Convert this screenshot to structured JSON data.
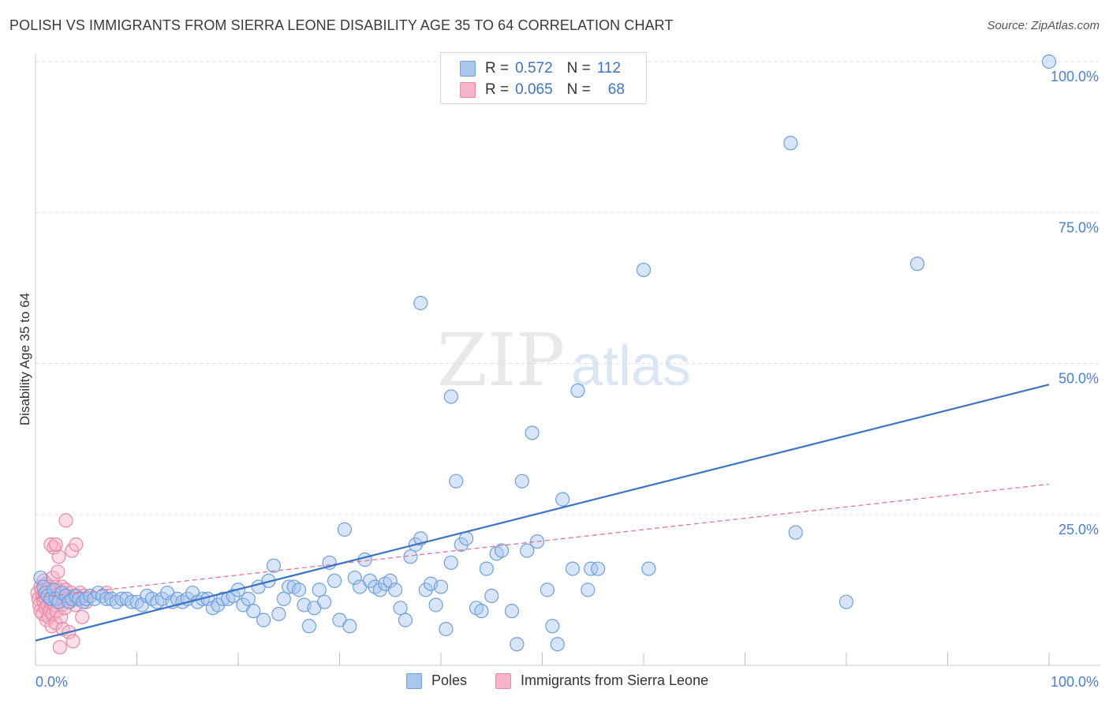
{
  "title": "POLISH VS IMMIGRANTS FROM SIERRA LEONE DISABILITY AGE 35 TO 64 CORRELATION CHART",
  "source": "Source: ZipAtlas.com",
  "watermark": {
    "zip": "ZIP",
    "atlas": "atlas"
  },
  "legend_top": {
    "rows": [
      {
        "r_label": "R =",
        "r_value": "0.572",
        "n_label": "N =",
        "n_value": "112"
      },
      {
        "r_label": "R =",
        "r_value": "0.065",
        "n_label": "N =",
        "n_value": "68"
      }
    ]
  },
  "colors": {
    "poles_fill": "#a9c6ef",
    "poles_stroke": "#6f9fdc",
    "poles_line": "#3d73c5",
    "sl_fill": "#f7b3c8",
    "sl_stroke": "#e889a8",
    "sl_line": "#e27497",
    "grid": "#dedede",
    "tick_text": "#4a7fcf"
  },
  "chart_data": {
    "type": "scatter",
    "title": "POLISH VS IMMIGRANTS FROM SIERRA LEONE DISABILITY AGE 35 TO 64 CORRELATION CHART",
    "xlabel": "",
    "ylabel": "Disability Age 35 to 64",
    "xlim": [
      0,
      100
    ],
    "ylim": [
      0,
      100
    ],
    "x_tick_labels": [
      "0.0%",
      "100.0%"
    ],
    "y_ticks": [
      25,
      50,
      75,
      100
    ],
    "y_tick_labels": [
      "25.0%",
      "50.0%",
      "75.0%",
      "100.0%"
    ],
    "grid": "horizontal dashed",
    "legend_position": "bottom",
    "series": [
      {
        "name": "Poles",
        "trend": {
          "x": [
            0,
            100
          ],
          "y": [
            4.1,
            46.5
          ]
        },
        "points": [
          [
            0.5,
            14.5
          ],
          [
            0.8,
            13.0
          ],
          [
            1.0,
            12.0
          ],
          [
            1.2,
            11.5
          ],
          [
            1.5,
            11.0
          ],
          [
            1.8,
            12.5
          ],
          [
            2.0,
            11.0
          ],
          [
            2.3,
            10.5
          ],
          [
            2.6,
            12.0
          ],
          [
            3.0,
            11.5
          ],
          [
            3.3,
            10.5
          ],
          [
            3.6,
            11.0
          ],
          [
            4.0,
            11.5
          ],
          [
            4.3,
            11.0
          ],
          [
            4.7,
            10.5
          ],
          [
            5.0,
            11.0
          ],
          [
            5.4,
            11.5
          ],
          [
            5.8,
            11.0
          ],
          [
            6.2,
            12.0
          ],
          [
            6.6,
            11.5
          ],
          [
            7.0,
            11.0
          ],
          [
            7.5,
            11.0
          ],
          [
            8.0,
            10.5
          ],
          [
            8.5,
            11.0
          ],
          [
            9.0,
            11.0
          ],
          [
            9.5,
            10.5
          ],
          [
            10.0,
            10.5
          ],
          [
            10.5,
            10.0
          ],
          [
            11.0,
            11.5
          ],
          [
            11.5,
            11.0
          ],
          [
            12.0,
            10.5
          ],
          [
            12.5,
            11.0
          ],
          [
            13.0,
            12.0
          ],
          [
            13.5,
            10.5
          ],
          [
            14.0,
            11.0
          ],
          [
            14.5,
            10.5
          ],
          [
            15.0,
            11.0
          ],
          [
            15.5,
            12.0
          ],
          [
            16.0,
            10.5
          ],
          [
            16.5,
            11.0
          ],
          [
            17.0,
            11.0
          ],
          [
            17.5,
            9.5
          ],
          [
            18.0,
            10.0
          ],
          [
            18.5,
            11.0
          ],
          [
            19.0,
            11.0
          ],
          [
            19.5,
            11.5
          ],
          [
            20.0,
            12.5
          ],
          [
            20.5,
            10.0
          ],
          [
            21.0,
            11.0
          ],
          [
            21.5,
            9.0
          ],
          [
            22.0,
            13.0
          ],
          [
            22.5,
            7.5
          ],
          [
            23.0,
            14.0
          ],
          [
            23.5,
            16.5
          ],
          [
            24.0,
            8.5
          ],
          [
            24.5,
            11.0
          ],
          [
            25.0,
            13.0
          ],
          [
            25.5,
            13.0
          ],
          [
            26.0,
            12.5
          ],
          [
            26.5,
            10.0
          ],
          [
            27.0,
            6.5
          ],
          [
            27.5,
            9.5
          ],
          [
            28.0,
            12.5
          ],
          [
            28.5,
            10.5
          ],
          [
            29.0,
            17.0
          ],
          [
            29.5,
            14.0
          ],
          [
            30.0,
            7.5
          ],
          [
            30.5,
            22.5
          ],
          [
            31.0,
            6.5
          ],
          [
            31.5,
            14.5
          ],
          [
            32.0,
            13.0
          ],
          [
            32.5,
            17.5
          ],
          [
            33.0,
            14.0
          ],
          [
            33.5,
            13.0
          ],
          [
            34.0,
            12.5
          ],
          [
            34.5,
            13.5
          ],
          [
            35.0,
            14.0
          ],
          [
            35.5,
            12.5
          ],
          [
            36.0,
            9.5
          ],
          [
            36.5,
            7.5
          ],
          [
            37.0,
            18.0
          ],
          [
            37.5,
            20.0
          ],
          [
            38.0,
            21.0
          ],
          [
            38.5,
            12.5
          ],
          [
            39.0,
            13.5
          ],
          [
            39.5,
            10.0
          ],
          [
            40.0,
            13.0
          ],
          [
            40.5,
            6.0
          ],
          [
            41.0,
            17.0
          ],
          [
            41.5,
            30.5
          ],
          [
            42.0,
            20.0
          ],
          [
            42.5,
            21.0
          ],
          [
            43.5,
            9.5
          ],
          [
            44.0,
            9.0
          ],
          [
            44.5,
            16.0
          ],
          [
            45.0,
            11.5
          ],
          [
            45.5,
            18.5
          ],
          [
            46.0,
            19.0
          ],
          [
            47.0,
            9.0
          ],
          [
            47.5,
            3.5
          ],
          [
            48.0,
            30.5
          ],
          [
            48.5,
            19.0
          ],
          [
            49.0,
            38.5
          ],
          [
            49.5,
            20.5
          ],
          [
            50.5,
            12.5
          ],
          [
            51.0,
            6.5
          ],
          [
            51.5,
            3.5
          ],
          [
            52.0,
            27.5
          ],
          [
            53.0,
            16.0
          ],
          [
            53.5,
            45.5
          ],
          [
            54.5,
            12.5
          ],
          [
            54.8,
            16.0
          ],
          [
            55.5,
            16.0
          ],
          [
            60.0,
            65.5
          ],
          [
            60.5,
            16.0
          ],
          [
            74.5,
            86.5
          ],
          [
            75.0,
            22.0
          ],
          [
            80.0,
            10.5
          ],
          [
            87.0,
            66.5
          ],
          [
            100.0,
            100.0
          ],
          [
            38.0,
            60.0
          ],
          [
            41.0,
            44.5
          ]
        ]
      },
      {
        "name": "Immigrants from Sierra Leone",
        "trend": {
          "x": [
            0,
            100
          ],
          "y": [
            11.2,
            30.0
          ]
        },
        "points": [
          [
            0.2,
            12.0
          ],
          [
            0.3,
            11.0
          ],
          [
            0.4,
            10.0
          ],
          [
            0.5,
            9.0
          ],
          [
            0.5,
            13.0
          ],
          [
            0.6,
            12.5
          ],
          [
            0.7,
            11.5
          ],
          [
            0.7,
            8.5
          ],
          [
            0.8,
            10.5
          ],
          [
            0.8,
            14.0
          ],
          [
            0.9,
            12.0
          ],
          [
            1.0,
            11.0
          ],
          [
            1.0,
            9.5
          ],
          [
            1.1,
            13.5
          ],
          [
            1.1,
            7.5
          ],
          [
            1.2,
            12.5
          ],
          [
            1.2,
            10.0
          ],
          [
            1.3,
            11.5
          ],
          [
            1.3,
            8.0
          ],
          [
            1.4,
            13.0
          ],
          [
            1.4,
            9.0
          ],
          [
            1.5,
            12.0
          ],
          [
            1.5,
            10.5
          ],
          [
            1.6,
            11.0
          ],
          [
            1.6,
            6.5
          ],
          [
            1.7,
            14.5
          ],
          [
            1.7,
            8.5
          ],
          [
            1.8,
            12.0
          ],
          [
            1.8,
            19.5
          ],
          [
            1.9,
            10.0
          ],
          [
            1.9,
            11.5
          ],
          [
            2.0,
            13.0
          ],
          [
            2.0,
            7.0
          ],
          [
            2.1,
            12.5
          ],
          [
            2.1,
            9.0
          ],
          [
            2.2,
            11.0
          ],
          [
            2.2,
            15.5
          ],
          [
            2.3,
            10.5
          ],
          [
            2.3,
            18.0
          ],
          [
            2.4,
            12.0
          ],
          [
            2.4,
            3.0
          ],
          [
            2.5,
            11.5
          ],
          [
            2.5,
            8.0
          ],
          [
            2.6,
            13.0
          ],
          [
            2.6,
            10.0
          ],
          [
            2.7,
            12.0
          ],
          [
            2.7,
            6.0
          ],
          [
            2.8,
            11.0
          ],
          [
            2.9,
            9.5
          ],
          [
            3.0,
            12.5
          ],
          [
            3.0,
            24.0
          ],
          [
            3.2,
            11.0
          ],
          [
            3.3,
            5.5
          ],
          [
            3.4,
            10.5
          ],
          [
            3.5,
            12.0
          ],
          [
            3.6,
            19.0
          ],
          [
            3.7,
            4.0
          ],
          [
            3.8,
            11.5
          ],
          [
            3.9,
            10.0
          ],
          [
            4.0,
            20.0
          ],
          [
            4.2,
            11.0
          ],
          [
            4.4,
            12.0
          ],
          [
            4.6,
            8.0
          ],
          [
            4.8,
            11.5
          ],
          [
            5.0,
            10.5
          ],
          [
            7.0,
            12.0
          ],
          [
            1.5,
            20.0
          ],
          [
            2.0,
            20.0
          ]
        ]
      }
    ]
  }
}
